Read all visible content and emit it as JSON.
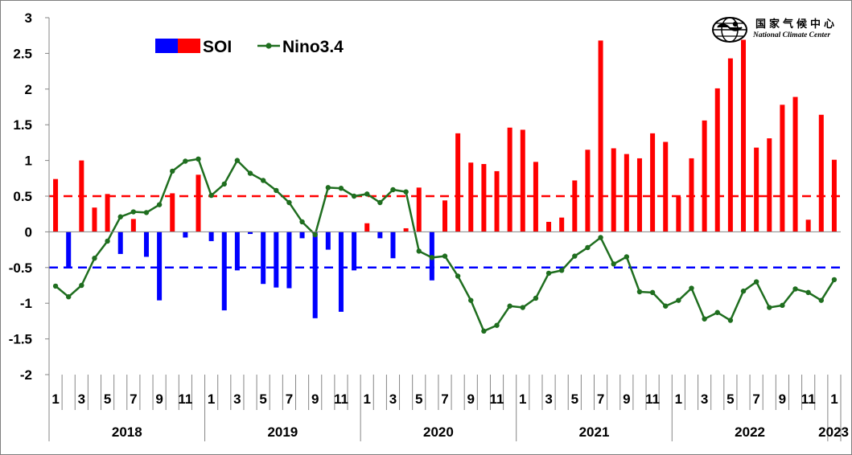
{
  "chart_data": {
    "type": "bar",
    "y_axis": {
      "min": -2,
      "max": 3,
      "ticks": [
        "3",
        "2.5",
        "2",
        "1.5",
        "1",
        "0.5",
        "0",
        "-0.5",
        "-1",
        "-1.5",
        "-2"
      ]
    },
    "x_tick_labels": [
      "1",
      "3",
      "5",
      "7",
      "9",
      "11",
      "1",
      "3",
      "5",
      "7",
      "9",
      "11",
      "1",
      "3",
      "5",
      "7",
      "9",
      "11",
      "1",
      "3",
      "5",
      "7",
      "9",
      "11",
      "1",
      "3",
      "5",
      "7",
      "9",
      "11",
      "1"
    ],
    "years": [
      "2018",
      "2019",
      "2020",
      "2021",
      "2022",
      "2023"
    ],
    "months": [
      "2018-01",
      "2018-02",
      "2018-03",
      "2018-04",
      "2018-05",
      "2018-06",
      "2018-07",
      "2018-08",
      "2018-09",
      "2018-10",
      "2018-11",
      "2018-12",
      "2019-01",
      "2019-02",
      "2019-03",
      "2019-04",
      "2019-05",
      "2019-06",
      "2019-07",
      "2019-08",
      "2019-09",
      "2019-10",
      "2019-11",
      "2019-12",
      "2020-01",
      "2020-02",
      "2020-03",
      "2020-04",
      "2020-05",
      "2020-06",
      "2020-07",
      "2020-08",
      "2020-09",
      "2020-10",
      "2020-11",
      "2020-12",
      "2021-01",
      "2021-02",
      "2021-03",
      "2021-04",
      "2021-05",
      "2021-06",
      "2021-07",
      "2021-08",
      "2021-09",
      "2021-10",
      "2021-11",
      "2021-12",
      "2022-01",
      "2022-02",
      "2022-03",
      "2022-04",
      "2022-05",
      "2022-06",
      "2022-07",
      "2022-08",
      "2022-09",
      "2022-10",
      "2022-11",
      "2022-12",
      "2023-01"
    ],
    "series": [
      {
        "name": "SOI",
        "type": "bar",
        "color_positive": "#ff0000",
        "color_negative": "#0000ff",
        "values": [
          0.74,
          -0.51,
          1.0,
          0.34,
          0.53,
          -0.31,
          0.18,
          -0.35,
          -0.96,
          0.54,
          -0.08,
          0.8,
          -0.13,
          -1.1,
          -0.54,
          -0.03,
          -0.73,
          -0.78,
          -0.79,
          -0.09,
          -1.21,
          -0.25,
          -1.12,
          -0.54,
          0.12,
          -0.09,
          -0.37,
          0.05,
          0.62,
          -0.68,
          0.44,
          1.38,
          0.97,
          0.95,
          0.85,
          1.46,
          1.43,
          0.98,
          0.14,
          0.2,
          0.72,
          1.15,
          2.68,
          1.17,
          1.09,
          1.03,
          1.38,
          1.26,
          0.49,
          1.03,
          1.56,
          2.01,
          2.43,
          2.69,
          1.18,
          1.31,
          1.78,
          1.89,
          0.17,
          1.64,
          1.01
        ]
      },
      {
        "name": "Nino3.4",
        "type": "line",
        "color": "#1f6e1f",
        "values": [
          -0.76,
          -0.91,
          -0.75,
          -0.37,
          -0.13,
          0.21,
          0.28,
          0.27,
          0.38,
          0.85,
          0.99,
          1.02,
          0.51,
          0.67,
          1.0,
          0.82,
          0.72,
          0.58,
          0.41,
          0.14,
          -0.04,
          0.62,
          0.61,
          0.5,
          0.53,
          0.41,
          0.59,
          0.56,
          -0.27,
          -0.36,
          -0.34,
          -0.62,
          -0.96,
          -1.39,
          -1.31,
          -1.04,
          -1.06,
          -0.93,
          -0.58,
          -0.54,
          -0.34,
          -0.22,
          -0.08,
          -0.45,
          -0.35,
          -0.84,
          -0.85,
          -1.04,
          -0.96,
          -0.79,
          -1.22,
          -1.13,
          -1.24,
          -0.83,
          -0.7,
          -1.06,
          -1.03,
          -0.8,
          -0.85,
          -0.96,
          -0.67
        ]
      }
    ],
    "reference_lines": [
      {
        "y": 0.5,
        "color": "#ff0000",
        "style": "dashed"
      },
      {
        "y": -0.5,
        "color": "#0000ff",
        "style": "dashed"
      }
    ],
    "legend": {
      "position": "top-left"
    }
  },
  "logo": {
    "text_cn": "国家气候中心",
    "text_en": "National Climate Center",
    "emblem": "ncc-globe-emblem"
  }
}
